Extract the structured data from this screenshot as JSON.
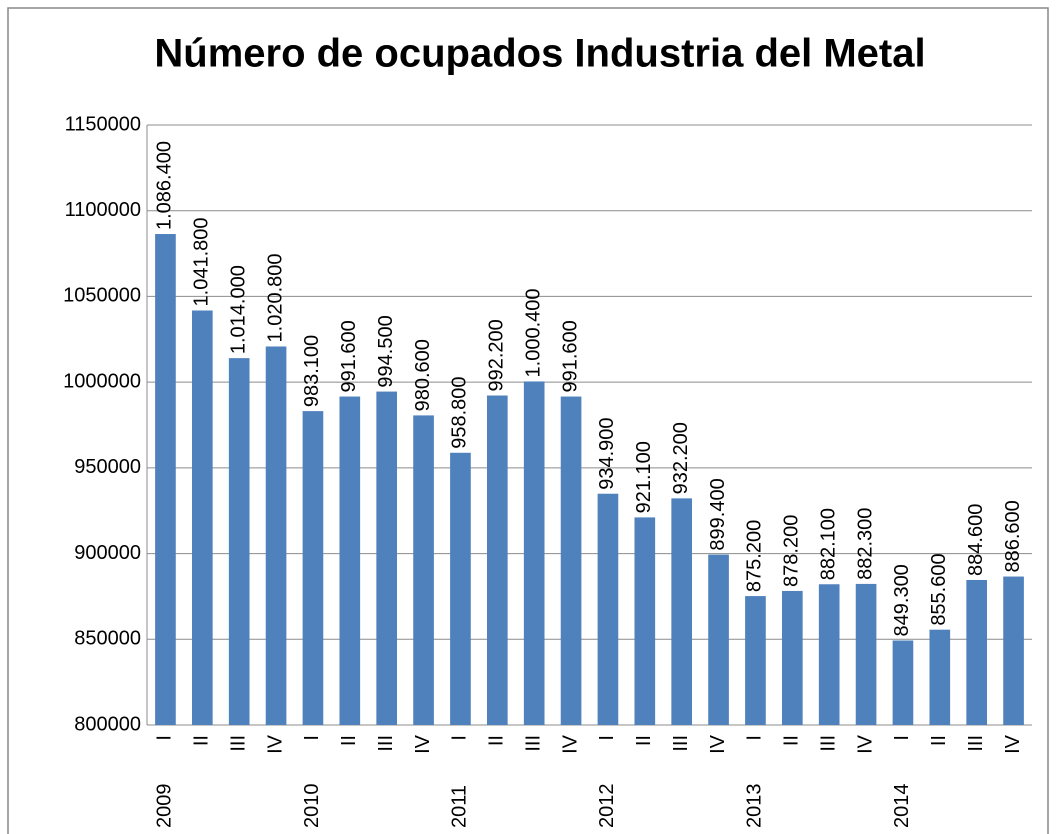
{
  "chart_data": {
    "type": "bar",
    "title": "Número de ocupados Industria del Metal",
    "categories": [
      "I",
      "II",
      "III",
      "IV",
      "I",
      "II",
      "III",
      "IV",
      "I",
      "II",
      "III",
      "IV",
      "I",
      "II",
      "III",
      "IV",
      "I",
      "II",
      "III",
      "IV",
      "I",
      "II",
      "III",
      "IV"
    ],
    "groups": [
      "2009",
      "2010",
      "2011",
      "2012",
      "2013",
      "2014"
    ],
    "values": [
      1086400,
      1041800,
      1014000,
      1020800,
      983100,
      991600,
      994500,
      980600,
      958800,
      992200,
      1000400,
      991600,
      934900,
      921100,
      932200,
      899400,
      875200,
      878200,
      882100,
      882300,
      849300,
      855600,
      884600,
      886600
    ],
    "value_labels": [
      "1.086.400",
      "1.041.800",
      "1.014.000",
      "1.020.800",
      "983.100",
      "991.600",
      "994.500",
      "980.600",
      "958.800",
      "992.200",
      "1.000.400",
      "991.600",
      "934.900",
      "921.100",
      "932.200",
      "899.400",
      "875.200",
      "878.200",
      "882.100",
      "882.300",
      "849.300",
      "855.600",
      "884.600",
      "886.600"
    ],
    "color": "#4f81bd",
    "ylim": [
      800000,
      1150000
    ],
    "yticks": [
      800000,
      850000,
      900000,
      950000,
      1000000,
      1050000,
      1100000,
      1150000
    ],
    "grid": true
  }
}
